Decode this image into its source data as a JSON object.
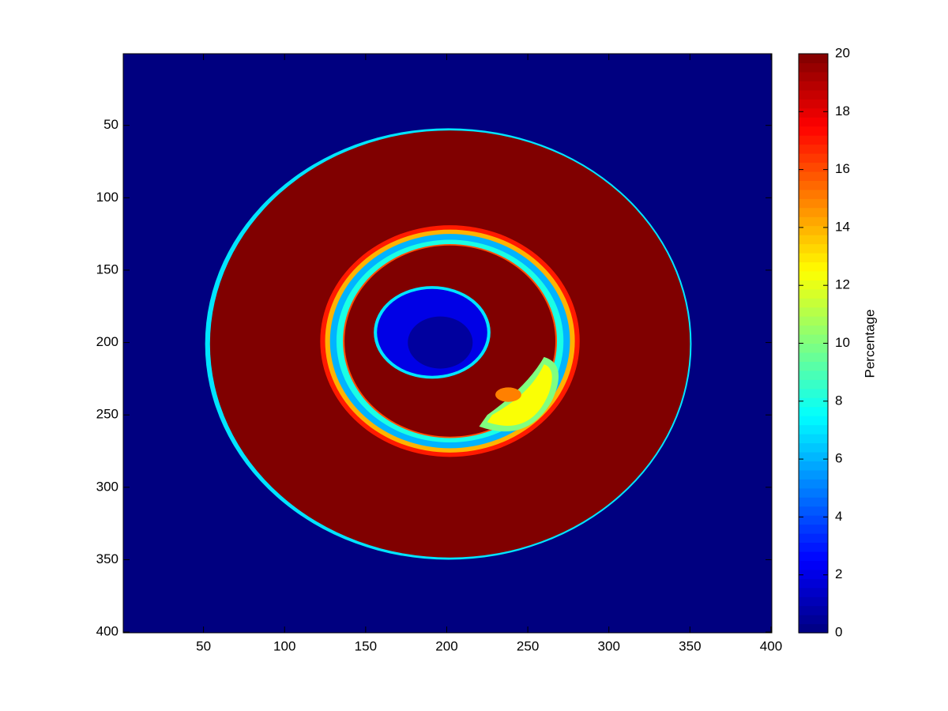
{
  "chart_data": {
    "type": "image",
    "xlim": [
      0.5,
      400.5
    ],
    "xticks": [
      50,
      100,
      150,
      200,
      250,
      300,
      350,
      400
    ],
    "ylim": [
      0.5,
      400.5
    ],
    "yticks": [
      50,
      100,
      150,
      200,
      250,
      300,
      350,
      400
    ],
    "y_reversed": true,
    "colormap": "jet",
    "colorbar": {
      "label": "Percentage",
      "lim": [
        0,
        20
      ],
      "ticks": [
        0,
        2,
        4,
        6,
        8,
        10,
        12,
        14,
        16,
        18,
        20
      ]
    }
  }
}
